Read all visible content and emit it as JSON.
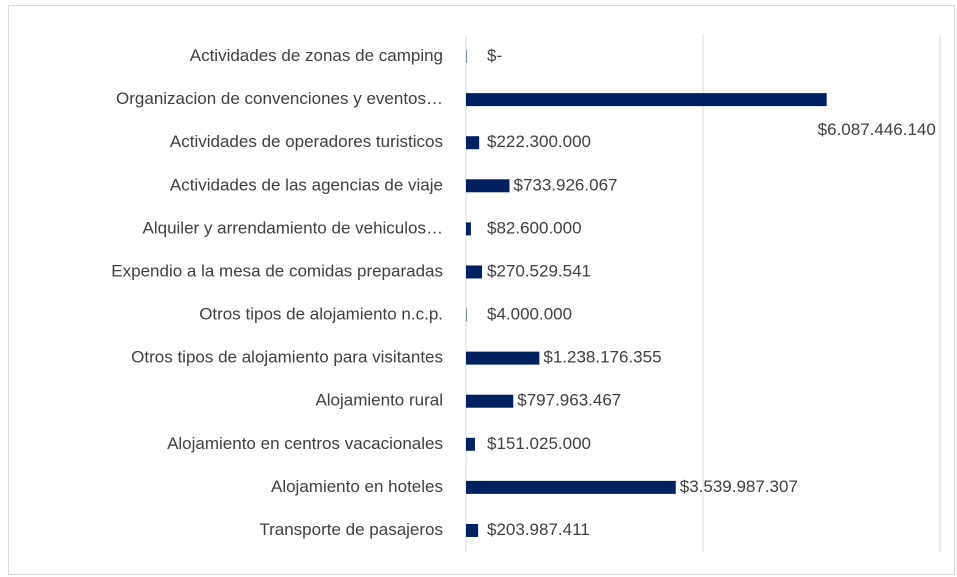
{
  "chart_data": {
    "type": "bar",
    "orientation": "horizontal",
    "categories": [
      "Actividades de zonas de camping",
      "Organizacion de convenciones y eventos…",
      "Actividades de operadores turisticos",
      "Actividades de las agencias de viaje",
      "Alquiler y arrendamiento de vehiculos…",
      "Expendio a la mesa de comidas preparadas",
      "Otros tipos de alojamiento n.c.p.",
      "Otros tipos de alojamiento para visitantes",
      "Alojamiento rural",
      "Alojamiento en centros vacacionales",
      "Alojamiento en hoteles",
      "Transporte de pasajeros"
    ],
    "values": [
      0,
      6087446140,
      222300000,
      733926067,
      82600000,
      270529541,
      4000000,
      1238176355,
      797963467,
      151025000,
      3539987307,
      203987411
    ],
    "value_labels": [
      "$-",
      "$6.087.446.140",
      "$222.300.000",
      "$733.926.067",
      "$82.600.000",
      "$270.529.541",
      "$4.000.000",
      "$1.238.176.355",
      "$797.963.467",
      "$151.025.000",
      "$3.539.987.307",
      "$203.987.411"
    ],
    "color": "#002060",
    "xlim": [
      0,
      8000000000
    ],
    "xticks": [
      0,
      4000000000,
      8000000000
    ],
    "grid": true
  }
}
